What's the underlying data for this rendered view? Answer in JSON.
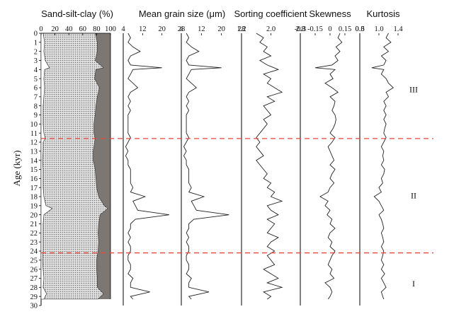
{
  "chart_data": {
    "type": "line",
    "ylabel": "Age (kyr)",
    "ylim": [
      0,
      30
    ],
    "yticks": [
      "0",
      "1",
      "2",
      "3",
      "4",
      "5",
      "6",
      "7",
      "8",
      "9",
      "10",
      "11",
      "12",
      "13",
      "14",
      "15",
      "16",
      "17",
      "18",
      "19",
      "20",
      "21",
      "22",
      "23",
      "24",
      "25",
      "26",
      "27",
      "28",
      "29",
      "30"
    ],
    "boundaries": [
      11.6,
      24.2
    ],
    "boundary_color": "#e8473a",
    "zones": [
      {
        "label": "III",
        "age": 6.2
      },
      {
        "label": "II",
        "age": 17.9
      },
      {
        "label": "I",
        "age": 27.6
      }
    ],
    "panels": [
      {
        "id": "sand-silt-clay",
        "title": "Sand-silt-clay (%)",
        "xlim": [
          0,
          100
        ],
        "ticks": [
          "0",
          "20",
          "40",
          "60",
          "80",
          "100"
        ],
        "tick_values": [
          0,
          20,
          40,
          60,
          80,
          100
        ],
        "series": [
          {
            "name": "Sand",
            "ages": [
              0,
              1,
              2,
              3,
              3.8,
              4,
              5,
              6,
              7,
              8,
              9,
              10,
              11,
              11.6,
              12,
              13,
              14,
              15,
              16,
              17,
              18,
              19,
              19.3,
              20,
              21,
              22,
              23,
              24,
              25,
              26,
              27,
              28,
              28.7,
              29.3
            ],
            "values": [
              3,
              5,
              4,
              6,
              12,
              5,
              4,
              5,
              4,
              3,
              3,
              3,
              4,
              6,
              3,
              3,
              2,
              3,
              3,
              3,
              4,
              7,
              16,
              4,
              3,
              3,
              3,
              3,
              2,
              3,
              4,
              3,
              8,
              4
            ],
            "color": "#ffffff"
          },
          {
            "name": "Silt",
            "ages": [
              0,
              1,
              2,
              3,
              3.8,
              4,
              5,
              6,
              7,
              8,
              9,
              10,
              11,
              11.6,
              12,
              13,
              14,
              15,
              16,
              17,
              18,
              19,
              19.3,
              20,
              21,
              22,
              23,
              24,
              25,
              26,
              27,
              28,
              28.7,
              29.3
            ],
            "values": [
              75,
              76,
              77,
              72,
              78,
              74,
              73,
              79,
              77,
              76,
              75,
              73,
              72,
              72,
              74,
              72,
              73,
              75,
              76,
              77,
              79,
              84,
              80,
              81,
              80,
              79,
              80,
              79,
              78,
              77,
              77,
              78,
              82,
              78
            ],
            "color": "#b9b9b9"
          },
          {
            "name": "Clay",
            "ages": [
              0,
              1,
              2,
              3,
              3.8,
              4,
              5,
              6,
              7,
              8,
              9,
              10,
              11,
              11.6,
              12,
              13,
              14,
              15,
              16,
              17,
              18,
              19,
              19.3,
              20,
              21,
              22,
              23,
              24,
              25,
              26,
              27,
              28,
              28.7,
              29.3
            ],
            "values": [
              22,
              19,
              19,
              22,
              10,
              21,
              23,
              16,
              19,
              21,
              22,
              24,
              24,
              22,
              23,
              25,
              25,
              22,
              21,
              20,
              17,
              9,
              4,
              15,
              17,
              18,
              17,
              18,
              20,
              20,
              19,
              19,
              10,
              18
            ],
            "color": "#7d7773"
          }
        ]
      },
      {
        "id": "mean-grain-size",
        "title": "Mean grain size (μm)",
        "xlim": [
          4,
          28
        ],
        "ticks": [
          "4",
          "12",
          "20",
          "28"
        ],
        "tick_values": [
          4,
          12,
          20,
          28
        ],
        "double_axis": true,
        "ages": [
          0,
          0.5,
          1,
          1.5,
          2,
          2.5,
          3,
          3.5,
          3.8,
          4,
          4.5,
          5,
          5.5,
          6,
          6.5,
          7,
          7.5,
          8,
          8.5,
          9,
          9.5,
          10,
          10.5,
          11,
          11.5,
          12,
          12.5,
          13,
          13.5,
          14,
          14.5,
          15,
          15.5,
          16,
          16.5,
          17,
          17.5,
          18,
          18.5,
          19,
          19.5,
          20,
          20.5,
          21,
          21.5,
          22,
          22.5,
          23,
          23.5,
          24,
          24.5,
          25,
          25.5,
          26,
          26.5,
          27,
          27.5,
          28,
          28.5,
          29,
          29.3
        ],
        "values": [
          6,
          7,
          6,
          8,
          11,
          7,
          6,
          7,
          20,
          8,
          7,
          6,
          8,
          10,
          7,
          6,
          7,
          6,
          7,
          6,
          6,
          6,
          6,
          6,
          7,
          6,
          5,
          6,
          5,
          6,
          6,
          7,
          7,
          7,
          7,
          8,
          7,
          13,
          8,
          9,
          10,
          23,
          9,
          7,
          7,
          6,
          7,
          6,
          7,
          7,
          6,
          6,
          7,
          7,
          6,
          8,
          7,
          7,
          15,
          7,
          8
        ],
        "color": "#222222"
      },
      {
        "id": "sorting-coefficient",
        "title": "Sorting coefficient",
        "xlim": [
          1.2,
          2.8
        ],
        "ticks": [
          "1.2",
          "2.0",
          "2.8"
        ],
        "tick_values": [
          1.2,
          2.0,
          2.8
        ],
        "ages": [
          0,
          0.5,
          1,
          1.5,
          2,
          2.5,
          3,
          3.5,
          4,
          4.5,
          5,
          5.5,
          6,
          6.5,
          7,
          7.5,
          8,
          8.5,
          9,
          9.5,
          10,
          10.5,
          11,
          11.5,
          12,
          12.5,
          13,
          13.5,
          14,
          14.5,
          15,
          15.5,
          16,
          16.5,
          17,
          17.5,
          18,
          18.5,
          19,
          19.5,
          20,
          20.5,
          21,
          21.5,
          22,
          22.5,
          23,
          23.5,
          24,
          24.5,
          25,
          25.5,
          26,
          26.5,
          27,
          27.5,
          28,
          28.5,
          29,
          29.3
        ],
        "values": [
          1.6,
          1.8,
          1.7,
          1.9,
          1.8,
          2.0,
          1.7,
          1.9,
          2.2,
          1.8,
          2.0,
          1.9,
          2.1,
          2.3,
          1.9,
          2.1,
          1.8,
          1.9,
          2.0,
          1.8,
          1.9,
          1.8,
          1.7,
          1.6,
          1.7,
          1.6,
          1.7,
          1.8,
          1.6,
          1.7,
          1.8,
          1.9,
          1.8,
          2.0,
          1.9,
          2.1,
          2.0,
          2.3,
          1.9,
          2.0,
          2.2,
          1.9,
          2.1,
          2.0,
          1.9,
          2.2,
          2.0,
          1.9,
          2.1,
          1.9,
          2.0,
          2.1,
          1.8,
          2.0,
          2.2,
          1.9,
          2.3,
          1.8,
          2.0,
          1.9
        ],
        "color": "#222222"
      },
      {
        "id": "skewness",
        "title": "Skewness",
        "xlim": [
          -0.3,
          0.3
        ],
        "ticks": [
          "-0.3",
          "-0.15",
          "0",
          "0.15",
          "0.3"
        ],
        "tick_values": [
          -0.3,
          -0.15,
          0,
          0.15,
          0.3
        ],
        "ages": [
          0,
          0.5,
          1,
          1.5,
          2,
          2.5,
          3,
          3.5,
          3.8,
          4,
          4.5,
          5,
          5.5,
          6,
          6.5,
          7,
          7.5,
          8,
          8.5,
          9,
          9.5,
          10,
          10.5,
          11,
          11.5,
          12,
          12.5,
          13,
          13.5,
          14,
          14.5,
          15,
          15.5,
          16,
          16.5,
          17,
          17.5,
          18,
          18.5,
          19,
          19.5,
          20,
          20.5,
          21,
          21.5,
          22,
          22.5,
          23,
          23.5,
          24,
          24.5,
          25,
          25.5,
          26,
          26.5,
          27,
          27.5,
          28,
          28.5,
          29,
          29.3
        ],
        "values": [
          0.1,
          0.08,
          0.12,
          0.06,
          0.1,
          0.05,
          0.08,
          0.02,
          -0.15,
          0.05,
          0.0,
          0.03,
          -0.05,
          0.02,
          0.08,
          0.0,
          0.05,
          0.04,
          0.02,
          0.05,
          0.06,
          0.05,
          0.03,
          0.0,
          0.05,
          0.02,
          -0.02,
          0.0,
          0.02,
          0.04,
          0.0,
          0.05,
          0.02,
          0.0,
          0.04,
          0.0,
          -0.02,
          -0.1,
          -0.02,
          -0.05,
          0.0,
          -0.03,
          0.02,
          0.0,
          0.05,
          0.0,
          -0.02,
          0.02,
          0.0,
          0.05,
          0.02,
          0.0,
          -0.02,
          0.02,
          0.0,
          0.04,
          -0.05,
          0.0,
          0.02,
          0.0,
          -0.02
        ],
        "color": "#222222"
      },
      {
        "id": "kurtosis",
        "title": "Kurtosis",
        "xlim": [
          0.6,
          1.4
        ],
        "ticks": [
          "0.6",
          "1.0",
          "1.4"
        ],
        "tick_values": [
          0.6,
          1.0,
          1.4
        ],
        "ages": [
          0,
          0.5,
          1,
          1.5,
          2,
          2.5,
          3,
          3.5,
          3.8,
          4,
          4.5,
          5,
          5.5,
          6,
          6.5,
          7,
          7.5,
          8,
          8.5,
          9,
          9.5,
          10,
          10.5,
          11,
          11.5,
          12,
          12.5,
          13,
          13.5,
          14,
          14.5,
          15,
          15.5,
          16,
          16.5,
          17,
          17.5,
          18,
          18.5,
          19,
          19.5,
          20,
          20.5,
          21,
          21.5,
          22,
          22.5,
          23,
          23.5,
          24,
          24.5,
          25,
          25.5,
          26,
          26.5,
          27,
          27.5,
          28,
          28.5,
          29,
          29.3
        ],
        "values": [
          1.2,
          1.15,
          1.25,
          1.1,
          1.2,
          1.05,
          1.15,
          1.1,
          0.85,
          1.1,
          1.05,
          1.15,
          1.2,
          1.3,
          1.15,
          1.2,
          1.1,
          1.15,
          1.1,
          1.15,
          1.1,
          1.15,
          1.12,
          1.1,
          1.15,
          1.1,
          1.05,
          1.1,
          1.08,
          1.1,
          1.05,
          1.12,
          1.1,
          1.05,
          1.08,
          1.0,
          1.05,
          0.9,
          1.0,
          1.05,
          1.1,
          1.0,
          1.05,
          1.08,
          1.1,
          1.05,
          1.08,
          1.1,
          1.05,
          1.1,
          1.08,
          1.05,
          1.1,
          1.05,
          1.12,
          1.05,
          1.1,
          1.15,
          1.05,
          1.08,
          1.1
        ],
        "color": "#222222"
      }
    ]
  }
}
